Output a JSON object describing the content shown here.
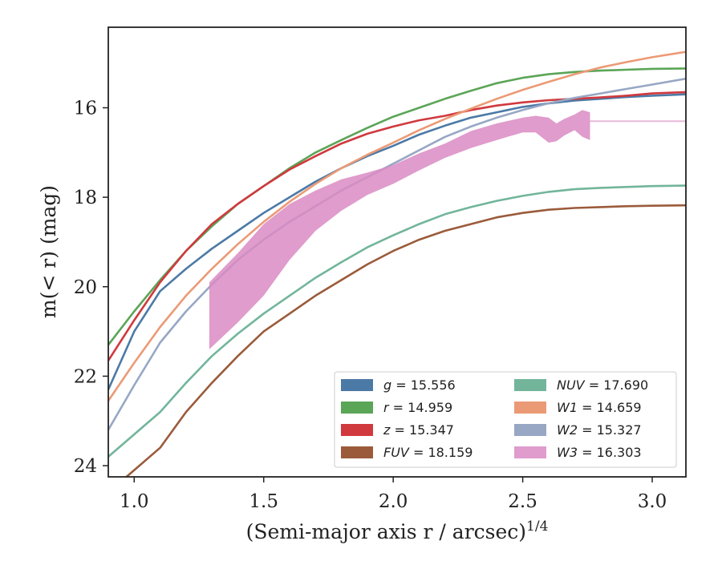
{
  "chart_data": {
    "type": "line",
    "xlabel": "(Semi-major axis r / arcsec)",
    "xlabel_exponent": "1/4",
    "ylabel": "m(< r) (mag)",
    "xlim": [
      0.9,
      3.13
    ],
    "ylim": [
      24.25,
      14.2
    ],
    "y_inverted": true,
    "xticks": [
      1.0,
      1.5,
      2.0,
      2.5,
      3.0
    ],
    "xtick_labels": [
      "1.0",
      "1.5",
      "2.0",
      "2.5",
      "3.0"
    ],
    "yticks": [
      16,
      18,
      20,
      22,
      24
    ],
    "ytick_labels": [
      "16",
      "18",
      "20",
      "22",
      "24"
    ],
    "grid": false,
    "legend_position": "lower-right",
    "legend_columns": 2,
    "series": [
      {
        "name": "g = 15.556",
        "symbol": "g",
        "value": "15.556",
        "color": "#4c7aa6",
        "x": [
          0.9,
          1.0,
          1.1,
          1.2,
          1.3,
          1.4,
          1.5,
          1.6,
          1.7,
          1.8,
          1.9,
          2.0,
          2.1,
          2.2,
          2.3,
          2.4,
          2.5,
          2.6,
          2.7,
          2.8,
          2.9,
          3.0,
          3.13
        ],
        "y": [
          22.3,
          21.0,
          20.1,
          19.6,
          19.15,
          18.75,
          18.35,
          18.0,
          17.65,
          17.35,
          17.08,
          16.85,
          16.6,
          16.4,
          16.22,
          16.1,
          15.98,
          15.9,
          15.84,
          15.8,
          15.76,
          15.73,
          15.7
        ]
      },
      {
        "name": "r = 14.959",
        "symbol": "r",
        "value": "14.959",
        "color": "#5ba557",
        "x": [
          0.9,
          1.0,
          1.1,
          1.2,
          1.3,
          1.4,
          1.5,
          1.6,
          1.7,
          1.8,
          1.9,
          2.0,
          2.1,
          2.2,
          2.3,
          2.4,
          2.5,
          2.6,
          2.7,
          2.8,
          2.9,
          3.0,
          3.13
        ],
        "y": [
          21.3,
          20.55,
          19.85,
          19.2,
          18.65,
          18.15,
          17.75,
          17.35,
          17.0,
          16.72,
          16.45,
          16.2,
          16.0,
          15.8,
          15.62,
          15.45,
          15.33,
          15.25,
          15.2,
          15.17,
          15.15,
          15.13,
          15.12
        ]
      },
      {
        "name": "z = 15.347",
        "symbol": "z",
        "value": "15.347",
        "color": "#d0393e",
        "x": [
          0.9,
          1.0,
          1.1,
          1.2,
          1.3,
          1.4,
          1.5,
          1.6,
          1.7,
          1.8,
          1.9,
          2.0,
          2.1,
          2.2,
          2.3,
          2.4,
          2.5,
          2.6,
          2.7,
          2.8,
          2.9,
          3.0,
          3.13
        ],
        "y": [
          21.65,
          20.75,
          19.9,
          19.2,
          18.6,
          18.15,
          17.75,
          17.38,
          17.08,
          16.8,
          16.58,
          16.42,
          16.28,
          16.18,
          16.05,
          15.95,
          15.88,
          15.83,
          15.8,
          15.77,
          15.73,
          15.68,
          15.65
        ]
      },
      {
        "name": "FUV = 18.159",
        "symbol": "FUV",
        "value": "18.159",
        "color": "#9b5b3b",
        "x": [
          0.9,
          1.0,
          1.1,
          1.2,
          1.3,
          1.4,
          1.5,
          1.6,
          1.7,
          1.8,
          1.9,
          2.0,
          2.1,
          2.2,
          2.3,
          2.4,
          2.5,
          2.6,
          2.7,
          2.8,
          2.9,
          3.0,
          3.13
        ],
        "y": [
          24.6,
          24.1,
          23.6,
          22.8,
          22.15,
          21.55,
          21.0,
          20.6,
          20.2,
          19.85,
          19.5,
          19.2,
          18.95,
          18.75,
          18.6,
          18.45,
          18.35,
          18.28,
          18.24,
          18.22,
          18.2,
          18.19,
          18.18
        ]
      },
      {
        "name": "NUV = 17.690",
        "symbol": "NUV",
        "value": "17.690",
        "color": "#72b59b",
        "x": [
          0.9,
          1.0,
          1.1,
          1.2,
          1.3,
          1.4,
          1.5,
          1.6,
          1.7,
          1.8,
          1.9,
          2.0,
          2.1,
          2.2,
          2.3,
          2.4,
          2.5,
          2.6,
          2.7,
          2.8,
          2.9,
          3.0,
          3.13
        ],
        "y": [
          23.8,
          23.3,
          22.8,
          22.15,
          21.55,
          21.05,
          20.6,
          20.2,
          19.8,
          19.45,
          19.12,
          18.85,
          18.6,
          18.38,
          18.22,
          18.08,
          17.97,
          17.88,
          17.82,
          17.79,
          17.77,
          17.75,
          17.74
        ]
      },
      {
        "name": "W1 = 14.659",
        "symbol": "W1",
        "value": "14.659",
        "color": "#eb9a76",
        "x": [
          0.9,
          1.0,
          1.1,
          1.2,
          1.3,
          1.4,
          1.5,
          1.6,
          1.7,
          1.8,
          1.9,
          2.0,
          2.1,
          2.2,
          2.3,
          2.4,
          2.5,
          2.6,
          2.7,
          2.8,
          2.9,
          3.0,
          3.13
        ],
        "y": [
          22.55,
          21.7,
          20.9,
          20.2,
          19.6,
          19.05,
          18.55,
          18.1,
          17.7,
          17.35,
          17.05,
          16.78,
          16.5,
          16.25,
          16.02,
          15.8,
          15.6,
          15.42,
          15.25,
          15.1,
          14.98,
          14.87,
          14.75
        ]
      },
      {
        "name": "W2 = 15.327",
        "symbol": "W2",
        "value": "15.327",
        "color": "#97a7c4",
        "x": [
          0.9,
          1.0,
          1.1,
          1.2,
          1.3,
          1.4,
          1.5,
          1.6,
          1.7,
          1.8,
          1.9,
          2.0,
          2.1,
          2.2,
          2.3,
          2.4,
          2.5,
          2.6,
          2.7,
          2.8,
          2.9,
          3.0,
          3.13
        ],
        "y": [
          23.2,
          22.2,
          21.25,
          20.55,
          19.95,
          19.4,
          18.95,
          18.55,
          18.2,
          17.85,
          17.55,
          17.25,
          16.95,
          16.65,
          16.42,
          16.22,
          16.05,
          15.9,
          15.78,
          15.68,
          15.58,
          15.48,
          15.35
        ]
      },
      {
        "name": "W3 = 16.303",
        "symbol": "W3",
        "value": "16.303",
        "color": "#d98bc3",
        "band": true,
        "x": [
          1.29,
          1.4,
          1.5,
          1.6,
          1.7,
          1.8,
          1.9,
          2.0,
          2.1,
          2.2,
          2.3,
          2.4,
          2.5,
          2.55,
          2.6,
          2.63,
          2.66,
          2.7,
          2.73,
          2.76
        ],
        "y": [
          20.6,
          20.0,
          19.35,
          18.75,
          18.3,
          17.95,
          17.7,
          17.48,
          17.2,
          16.95,
          16.7,
          16.52,
          16.4,
          16.38,
          16.5,
          16.55,
          16.45,
          16.35,
          16.32,
          16.3
        ],
        "y_low": [
          21.4,
          20.8,
          20.2,
          19.4,
          18.75,
          18.3,
          17.95,
          17.7,
          17.4,
          17.12,
          16.9,
          16.72,
          16.55,
          16.55,
          16.78,
          16.75,
          16.62,
          16.5,
          16.65,
          16.72
        ],
        "y_high": [
          19.9,
          19.25,
          18.6,
          18.15,
          17.85,
          17.6,
          17.45,
          17.28,
          17.02,
          16.8,
          16.52,
          16.35,
          16.22,
          16.18,
          16.22,
          16.35,
          16.25,
          16.15,
          16.05,
          16.1
        ],
        "extension": {
          "x": [
            2.76,
            3.13
          ],
          "y": [
            16.3,
            16.3
          ]
        }
      }
    ]
  }
}
